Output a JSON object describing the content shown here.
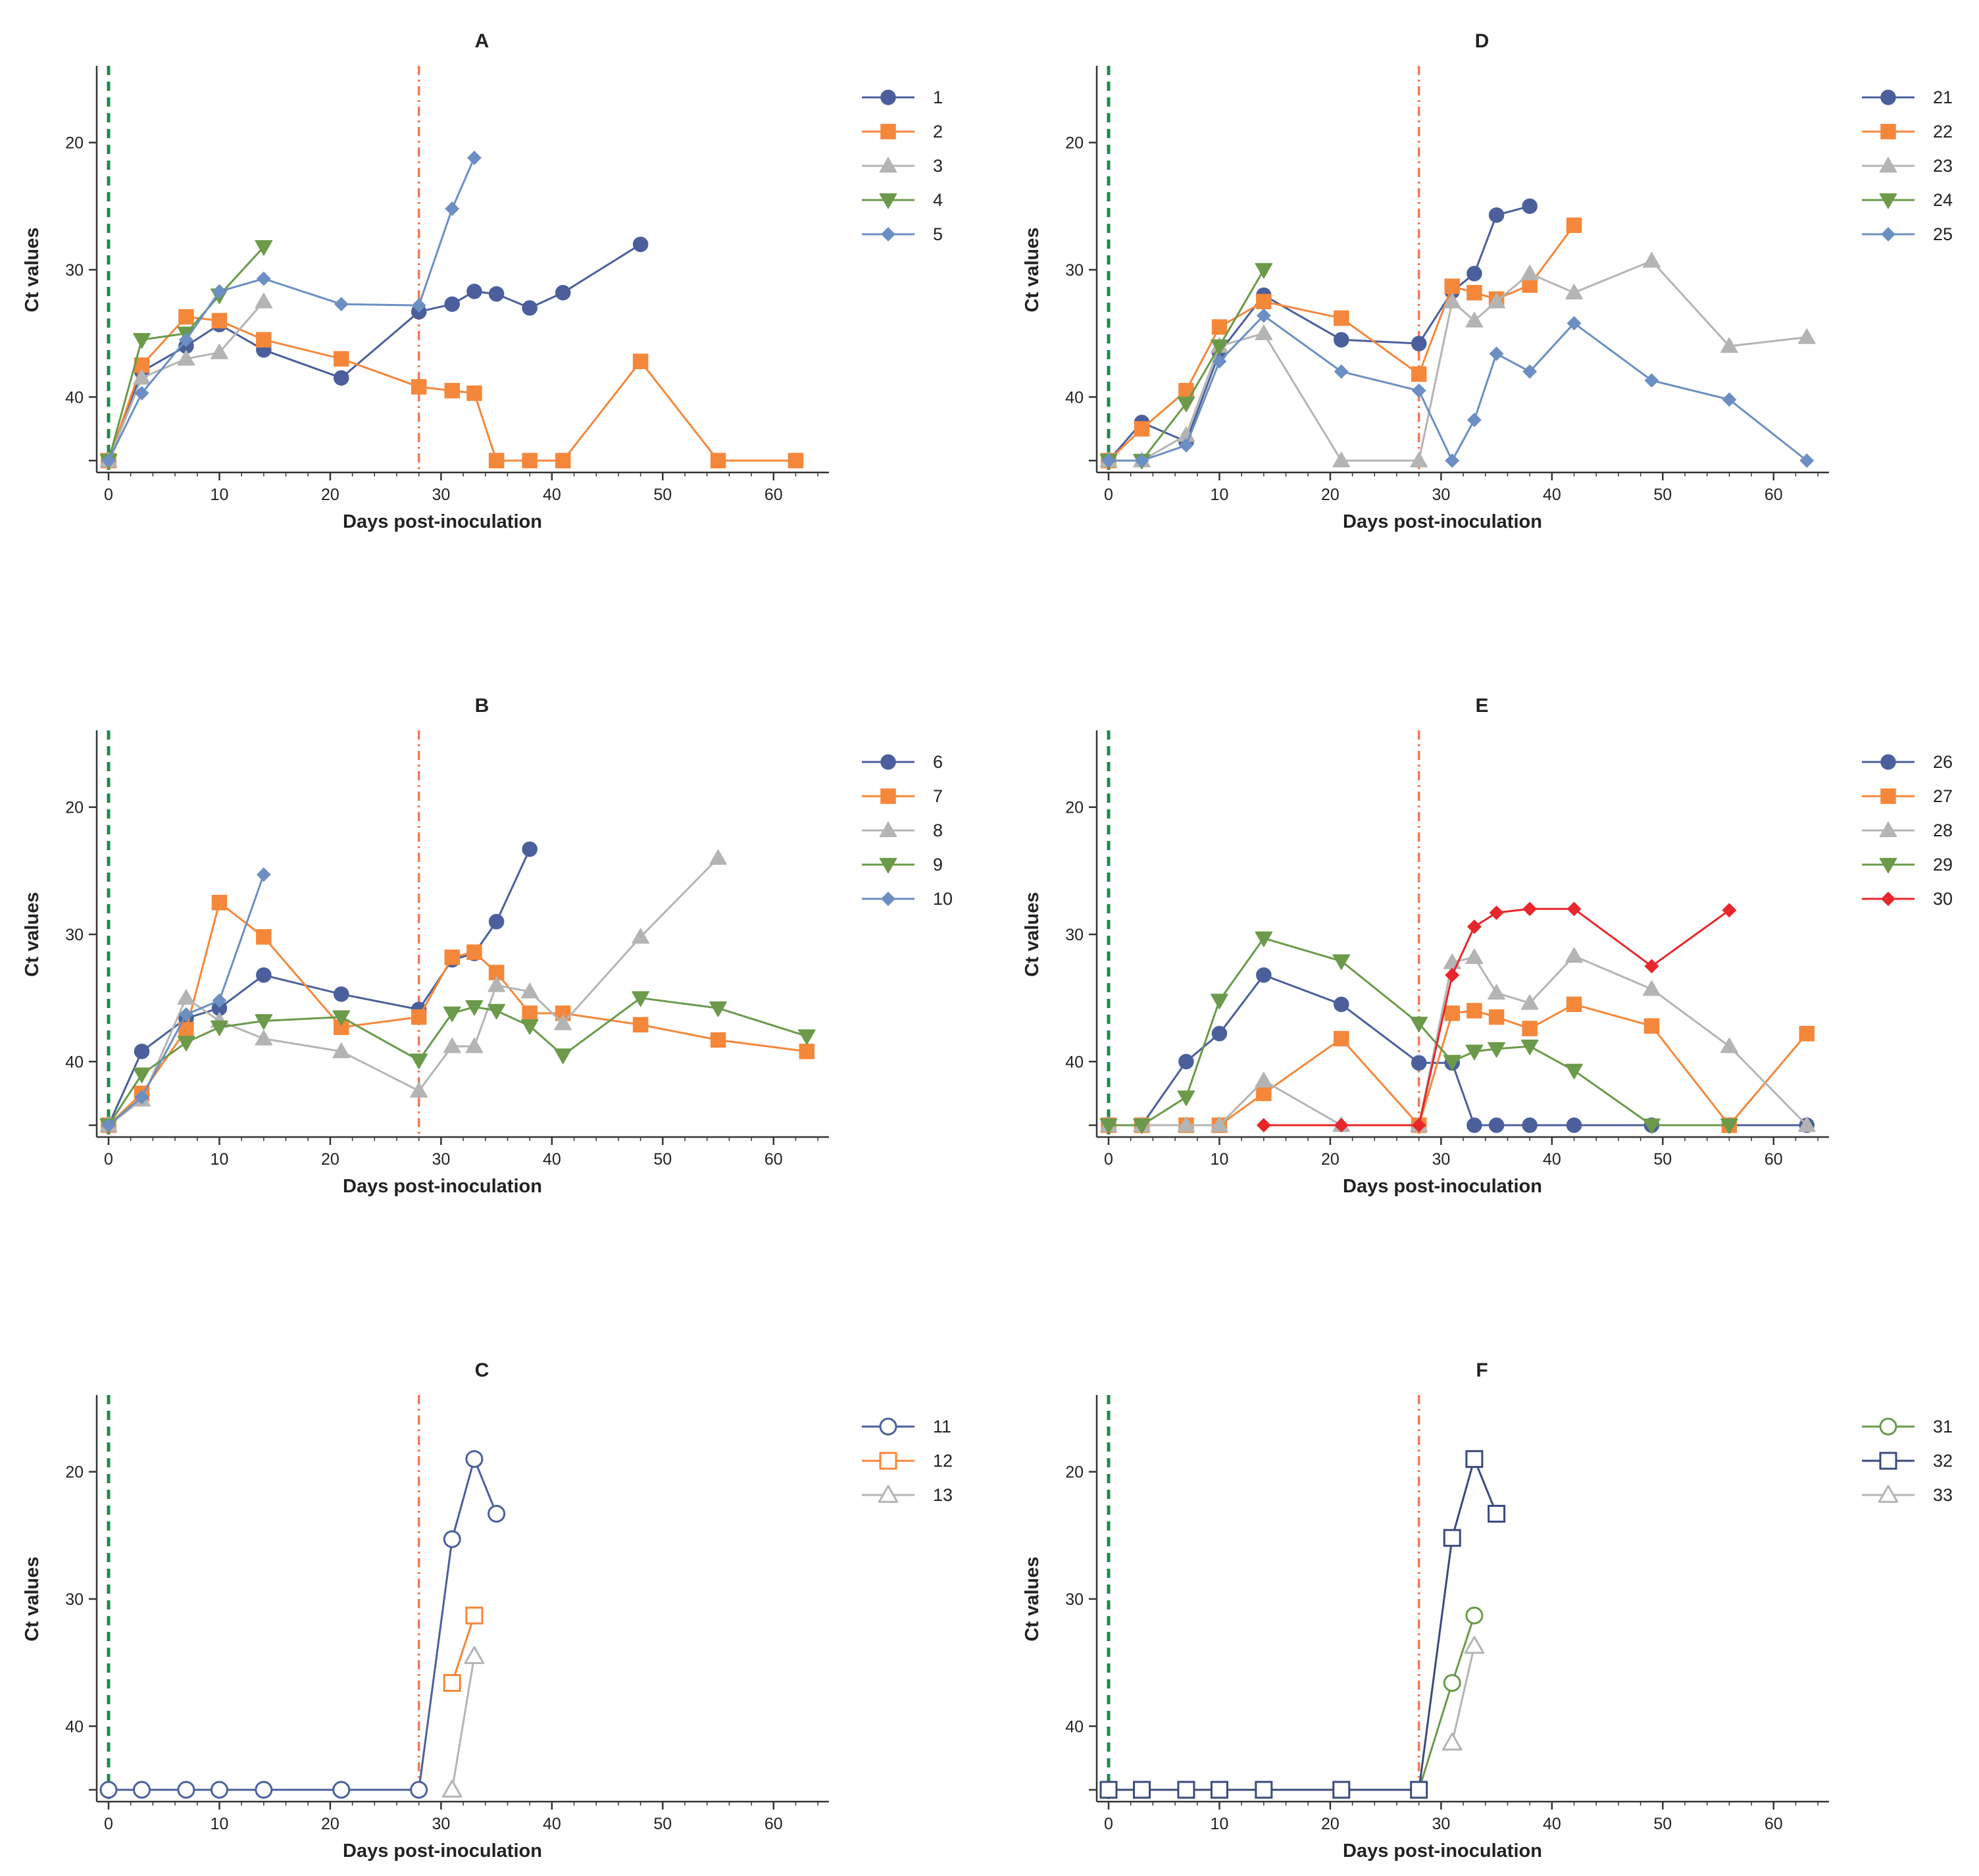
{
  "figure": {
    "x_label": "Days post-inoculation",
    "y_label": "Ct values",
    "reference_lines": [
      {
        "x": 0,
        "color": "#1e8a4a",
        "style": "dashed"
      },
      {
        "x": 28,
        "color": "#f07a5a",
        "style": "dash-dot"
      }
    ]
  },
  "chart_data": [
    {
      "id": "A",
      "type": "line",
      "title": "A",
      "xlabel": "Days post-inoculation",
      "ylabel": "Ct values",
      "xlim": [
        0,
        65
      ],
      "ylim": [
        15,
        45
      ],
      "y_inverted": true,
      "xticks": [
        0,
        10,
        20,
        30,
        40,
        50,
        60
      ],
      "yticks": [
        20,
        30,
        40
      ],
      "series": [
        {
          "name": "1",
          "color": "#4a5f9c",
          "marker": "circle",
          "filled": true,
          "x": [
            0,
            3,
            7,
            10,
            14,
            21,
            28,
            31,
            33,
            35,
            38,
            41,
            48
          ],
          "y": [
            45,
            38,
            36,
            34.3,
            36.3,
            38.5,
            33.3,
            32.7,
            31.7,
            31.9,
            33,
            31.8,
            28
          ]
        },
        {
          "name": "2",
          "color": "#f5873a",
          "marker": "square",
          "filled": true,
          "x": [
            0,
            3,
            7,
            10,
            14,
            21,
            28,
            31,
            33,
            35,
            38,
            41,
            48,
            55,
            62
          ],
          "y": [
            45,
            37.5,
            33.7,
            34,
            35.5,
            37,
            39.2,
            39.5,
            39.7,
            45,
            45,
            45,
            37.2,
            45,
            45
          ]
        },
        {
          "name": "3",
          "color": "#b4b4b4",
          "marker": "triangle-up",
          "filled": true,
          "x": [
            0,
            3,
            7,
            10,
            14
          ],
          "y": [
            45,
            38.5,
            37,
            36.5,
            32.5
          ]
        },
        {
          "name": "4",
          "color": "#6a9a4a",
          "marker": "triangle-down",
          "filled": true,
          "x": [
            0,
            3,
            7,
            10,
            14
          ],
          "y": [
            45,
            35.5,
            35,
            32,
            28.2
          ]
        },
        {
          "name": "5",
          "color": "#6b8fc2",
          "marker": "diamond",
          "filled": true,
          "x": [
            0,
            3,
            7,
            10,
            14,
            21,
            28,
            31,
            33
          ],
          "y": [
            45,
            39.7,
            35.5,
            31.7,
            30.7,
            32.7,
            32.8,
            25.2,
            21.2
          ]
        }
      ]
    },
    {
      "id": "D",
      "type": "line",
      "title": "D",
      "xlabel": "Days post-inoculation",
      "ylabel": "Ct values",
      "xlim": [
        0,
        65
      ],
      "ylim": [
        15,
        45
      ],
      "y_inverted": true,
      "xticks": [
        0,
        10,
        20,
        30,
        40,
        50,
        60
      ],
      "yticks": [
        20,
        30,
        40
      ],
      "series": [
        {
          "name": "21",
          "color": "#4a5f9c",
          "marker": "circle",
          "filled": true,
          "x": [
            0,
            3,
            7,
            10,
            14,
            21,
            28,
            31,
            33,
            35,
            38
          ],
          "y": [
            45,
            42,
            43.5,
            36.5,
            32,
            35.5,
            35.8,
            31.7,
            30.3,
            25.7,
            25
          ]
        },
        {
          "name": "22",
          "color": "#f5873a",
          "marker": "square",
          "filled": true,
          "x": [
            0,
            3,
            7,
            10,
            14,
            21,
            28,
            31,
            33,
            35,
            38,
            42
          ],
          "y": [
            45,
            42.5,
            39.5,
            34.5,
            32.5,
            33.8,
            38.2,
            31.3,
            31.8,
            32.3,
            31.2,
            26.5
          ]
        },
        {
          "name": "23",
          "color": "#b4b4b4",
          "marker": "triangle-up",
          "filled": true,
          "x": [
            0,
            3,
            7,
            10,
            14,
            21,
            28,
            31,
            33,
            35,
            38,
            42,
            49,
            56,
            63
          ],
          "y": [
            45,
            45,
            43,
            36,
            35,
            45,
            45,
            32.5,
            34,
            32.5,
            30.3,
            31.8,
            29.3,
            36,
            35.3
          ]
        },
        {
          "name": "24",
          "color": "#6a9a4a",
          "marker": "triangle-down",
          "filled": true,
          "x": [
            0,
            3,
            7,
            10,
            14
          ],
          "y": [
            45,
            45,
            40.5,
            36,
            30
          ]
        },
        {
          "name": "25",
          "color": "#6b8fc2",
          "marker": "diamond",
          "filled": true,
          "x": [
            0,
            3,
            7,
            10,
            14,
            21,
            28,
            31,
            33,
            35,
            38,
            42,
            49,
            56,
            63
          ],
          "y": [
            45,
            45,
            43.8,
            37.2,
            33.6,
            38,
            39.5,
            45,
            41.8,
            36.6,
            38,
            34.2,
            38.7,
            40.2,
            45
          ]
        }
      ]
    },
    {
      "id": "B",
      "type": "line",
      "title": "B",
      "xlabel": "Days post-inoculation",
      "ylabel": "Ct values",
      "xlim": [
        0,
        65
      ],
      "ylim": [
        15,
        45
      ],
      "y_inverted": true,
      "xticks": [
        0,
        10,
        20,
        30,
        40,
        50,
        60
      ],
      "yticks": [
        20,
        30,
        40
      ],
      "series": [
        {
          "name": "6",
          "color": "#4a5f9c",
          "marker": "circle",
          "filled": true,
          "x": [
            0,
            3,
            7,
            10,
            14,
            21,
            28,
            31,
            33,
            35,
            38
          ],
          "y": [
            45,
            39.2,
            36.6,
            35.8,
            33.2,
            34.7,
            35.9,
            32,
            31.5,
            29,
            23.3
          ]
        },
        {
          "name": "7",
          "color": "#f5873a",
          "marker": "square",
          "filled": true,
          "x": [
            0,
            3,
            7,
            10,
            14,
            21,
            28,
            31,
            33,
            35,
            38,
            41,
            48,
            55,
            63
          ],
          "y": [
            45,
            42.5,
            37.5,
            27.5,
            30.2,
            37.3,
            36.5,
            31.8,
            31.4,
            33,
            36.2,
            36.2,
            37.1,
            38.3,
            39.2
          ]
        },
        {
          "name": "8",
          "color": "#b4b4b4",
          "marker": "triangle-up",
          "filled": true,
          "x": [
            0,
            3,
            7,
            10,
            14,
            21,
            28,
            31,
            33,
            35,
            38,
            41,
            48,
            55
          ],
          "y": [
            45,
            43,
            35,
            36.8,
            38.2,
            39.2,
            42.3,
            38.8,
            38.8,
            34,
            34.5,
            37,
            30.2,
            24
          ]
        },
        {
          "name": "9",
          "color": "#6a9a4a",
          "marker": "triangle-down",
          "filled": true,
          "x": [
            0,
            3,
            7,
            10,
            14,
            21,
            28,
            31,
            33,
            35,
            38,
            41,
            48,
            55,
            63
          ],
          "y": [
            45,
            41,
            38.5,
            37.3,
            36.8,
            36.5,
            39.9,
            36.2,
            35.7,
            36,
            37.2,
            39.5,
            35,
            35.8,
            38
          ]
        },
        {
          "name": "10",
          "color": "#6b8fc2",
          "marker": "diamond",
          "filled": true,
          "x": [
            0,
            3,
            7,
            10,
            14
          ],
          "y": [
            45,
            42.8,
            36.3,
            35.2,
            25.3
          ]
        }
      ]
    },
    {
      "id": "E",
      "type": "line",
      "title": "E",
      "xlabel": "Days post-inoculation",
      "ylabel": "Ct values",
      "xlim": [
        0,
        65
      ],
      "ylim": [
        15,
        45
      ],
      "y_inverted": true,
      "xticks": [
        0,
        10,
        20,
        30,
        40,
        50,
        60
      ],
      "yticks": [
        20,
        30,
        40
      ],
      "series": [
        {
          "name": "26",
          "color": "#4a5f9c",
          "marker": "circle",
          "filled": true,
          "x": [
            0,
            3,
            7,
            10,
            14,
            21,
            28,
            31,
            33,
            35,
            38,
            42,
            49,
            56,
            63
          ],
          "y": [
            45,
            45,
            40,
            37.8,
            33.2,
            35.5,
            40.1,
            40.1,
            45,
            45,
            45,
            45,
            45,
            45,
            45
          ]
        },
        {
          "name": "27",
          "color": "#f5873a",
          "marker": "square",
          "filled": true,
          "x": [
            0,
            3,
            7,
            10,
            14,
            21,
            28,
            31,
            33,
            35,
            38,
            42,
            49,
            56,
            63
          ],
          "y": [
            45,
            45,
            45,
            45,
            42.5,
            38.2,
            45,
            36.2,
            36,
            36.5,
            37.4,
            35.5,
            37.2,
            45,
            37.8
          ]
        },
        {
          "name": "28",
          "color": "#b4b4b4",
          "marker": "triangle-up",
          "filled": true,
          "x": [
            0,
            3,
            7,
            10,
            14,
            21,
            28,
            31,
            33,
            35,
            38,
            42,
            49,
            56,
            63
          ],
          "y": [
            45,
            45,
            45,
            45,
            41.5,
            45,
            45,
            32.2,
            31.8,
            34.6,
            35.4,
            31.7,
            34.3,
            38.8,
            45
          ]
        },
        {
          "name": "29",
          "color": "#6a9a4a",
          "marker": "triangle-down",
          "filled": true,
          "x": [
            0,
            3,
            7,
            10,
            14,
            21,
            28,
            31,
            33,
            35,
            38,
            42,
            49,
            56
          ],
          "y": [
            45,
            45,
            42.8,
            35.2,
            30.3,
            32.1,
            37,
            40,
            39.2,
            39,
            38.8,
            40.7,
            45,
            45
          ]
        },
        {
          "name": "30",
          "color": "#e8262b",
          "marker": "diamond",
          "filled": true,
          "x": [
            14,
            21,
            28,
            31,
            33,
            35,
            38,
            42,
            49,
            56
          ],
          "y": [
            45,
            45,
            45,
            33.2,
            29.4,
            28.3,
            28,
            28,
            32.5,
            28.1
          ]
        }
      ]
    },
    {
      "id": "C",
      "type": "line",
      "title": "C",
      "xlabel": "Days post-inoculation",
      "ylabel": "Ct values",
      "xlim": [
        0,
        65
      ],
      "ylim": [
        15,
        45
      ],
      "y_inverted": true,
      "xticks": [
        0,
        10,
        20,
        30,
        40,
        50,
        60
      ],
      "yticks": [
        20,
        30,
        40
      ],
      "series": [
        {
          "name": "11",
          "color": "#4a5f9c",
          "marker": "circle",
          "filled": false,
          "x": [
            0,
            3,
            7,
            10,
            14,
            21,
            28,
            31,
            33,
            35
          ],
          "y": [
            45,
            45,
            45,
            45,
            45,
            45,
            45,
            25.3,
            19,
            23.3
          ]
        },
        {
          "name": "12",
          "color": "#f5873a",
          "marker": "square",
          "filled": false,
          "x": [
            31,
            33
          ],
          "y": [
            36.6,
            31.3
          ]
        },
        {
          "name": "13",
          "color": "#b4b4b4",
          "marker": "triangle-up",
          "filled": false,
          "x": [
            31,
            33
          ],
          "y": [
            45,
            34.5
          ]
        }
      ]
    },
    {
      "id": "F",
      "type": "line",
      "title": "F",
      "xlabel": "Days post-inoculation",
      "ylabel": "Ct values",
      "xlim": [
        0,
        65
      ],
      "ylim": [
        15,
        45
      ],
      "y_inverted": true,
      "xticks": [
        0,
        10,
        20,
        30,
        40,
        50,
        60
      ],
      "yticks": [
        20,
        30,
        40
      ],
      "series": [
        {
          "name": "31",
          "color": "#6a9a4a",
          "marker": "circle",
          "filled": false,
          "x": [
            28,
            31,
            33
          ],
          "y": [
            45,
            36.6,
            31.3
          ]
        },
        {
          "name": "32",
          "color": "#3a4a7c",
          "marker": "square",
          "filled": false,
          "x": [
            0,
            3,
            7,
            10,
            14,
            21,
            28,
            31,
            33,
            35
          ],
          "y": [
            45,
            45,
            45,
            45,
            45,
            45,
            45,
            25.2,
            19,
            23.3
          ]
        },
        {
          "name": "33",
          "color": "#b4b4b4",
          "marker": "triangle-up",
          "filled": false,
          "x": [
            31,
            33
          ],
          "y": [
            41.3,
            33.7
          ]
        }
      ]
    }
  ]
}
